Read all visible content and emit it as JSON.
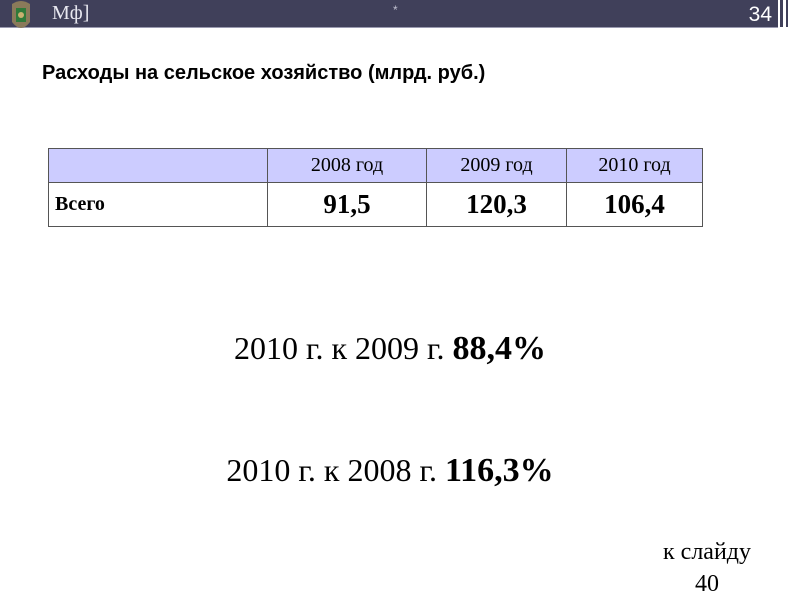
{
  "header": {
    "logo_text": "Мф]",
    "marker": "*",
    "slide_number": "34",
    "bar_color": "#40405a"
  },
  "title": "Расходы на сельское хозяйство (млрд. руб.)",
  "table": {
    "header": [
      "",
      "2008 год",
      "2009 год",
      "2010 год"
    ],
    "rows": [
      {
        "label": "Всего",
        "values": [
          "91,5",
          "120,3",
          "106,4"
        ]
      }
    ],
    "header_color": "#ccccff"
  },
  "stats": [
    {
      "text": "2010 г. к 2009 г.",
      "value": "88,4%"
    },
    {
      "text": "2010 г. к 2008 г.",
      "value": "116,3%"
    }
  ],
  "link": {
    "line1": "к слайду",
    "line2": "40"
  }
}
